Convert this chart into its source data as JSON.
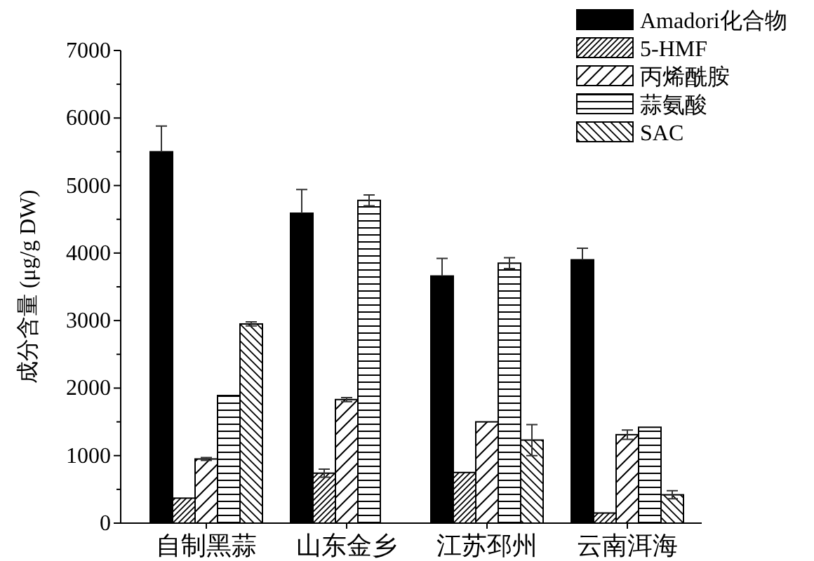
{
  "chart_data": {
    "type": "bar",
    "ylabel": "成分含量 (μg/g DW)",
    "categories": [
      "自制黑蒜",
      "山东金乡",
      "江苏邳州",
      "云南洱海"
    ],
    "ylim": [
      0,
      7000
    ],
    "yticks": [
      0,
      1000,
      2000,
      3000,
      4000,
      5000,
      6000,
      7000
    ],
    "legend": "top right",
    "grid": false,
    "series": [
      {
        "name": "Amadori化合物",
        "color": "#000000",
        "values": [
          5500,
          4590,
          3660,
          3900
        ],
        "errors": [
          380,
          350,
          260,
          170
        ]
      },
      {
        "name": "5-HMF",
        "color": "#000000",
        "values": [
          370,
          740,
          750,
          150
        ],
        "errors": [
          null,
          60,
          null,
          null
        ]
      },
      {
        "name": "丙烯酰胺",
        "color": "#000000",
        "values": [
          950,
          1830,
          1500,
          1310
        ],
        "errors": [
          20,
          30,
          null,
          70
        ]
      },
      {
        "name": "蒜氨酸",
        "color": "#000000",
        "values": [
          1890,
          4780,
          3850,
          1420
        ],
        "errors": [
          null,
          80,
          80,
          null
        ]
      },
      {
        "name": "SAC",
        "color": "#000000",
        "values": [
          2950,
          null,
          1230,
          420
        ],
        "errors": [
          30,
          null,
          230,
          60
        ]
      }
    ]
  }
}
